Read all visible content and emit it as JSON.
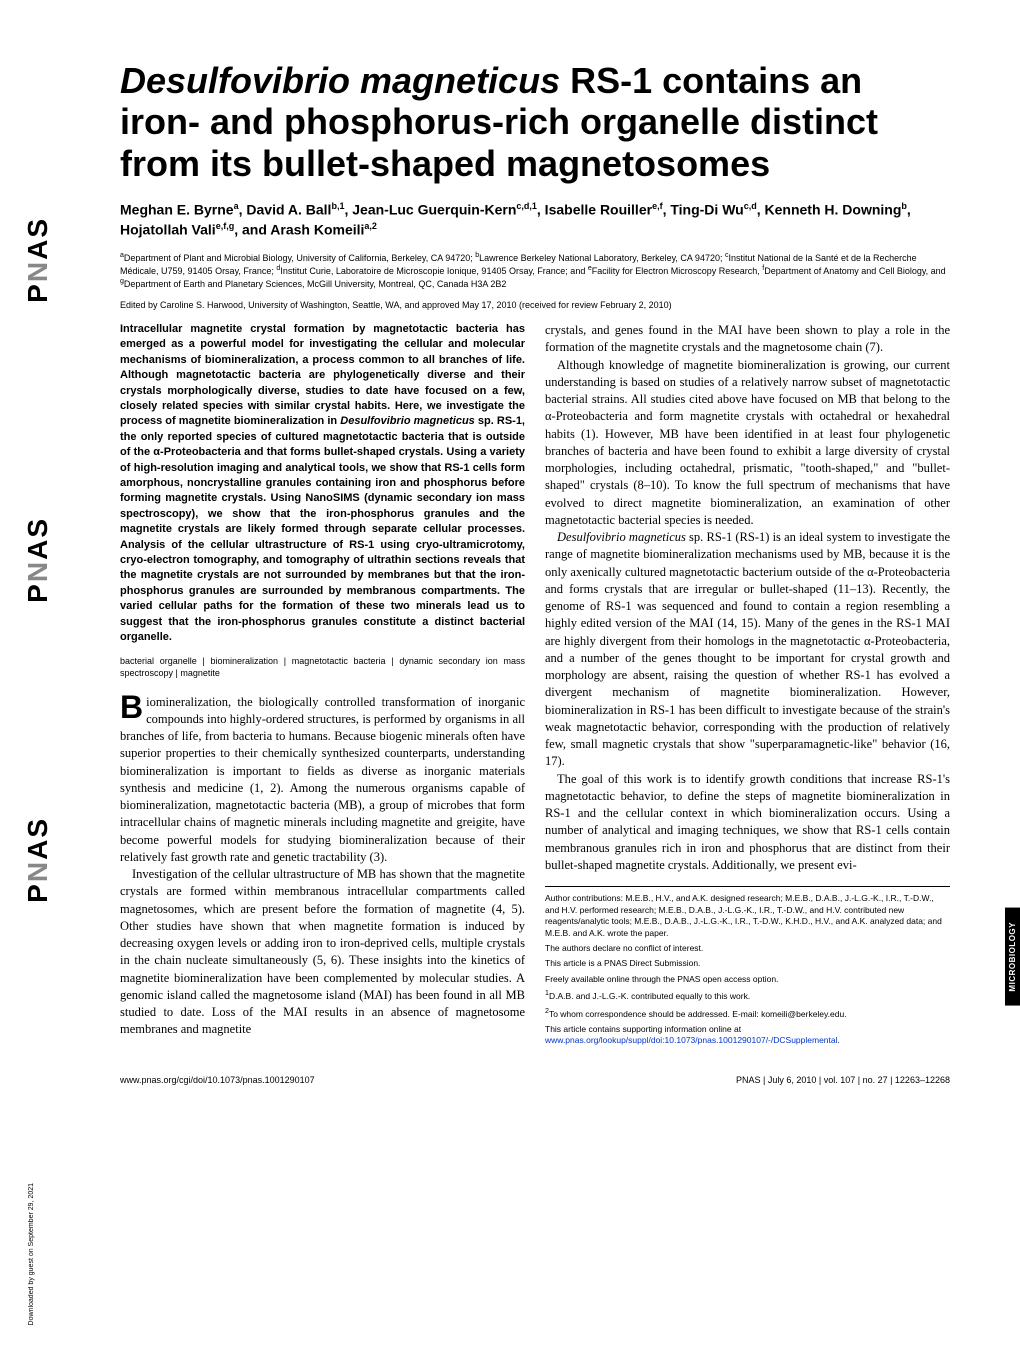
{
  "sidebar": {
    "logo_repeat": [
      "PNAS",
      "PNAS",
      "PNAS"
    ]
  },
  "title_plain_prefix": "Desulfovibrio magneticus",
  "title_rest": " RS-1 contains an iron- and phosphorus-rich organelle distinct from its bullet-shaped magnetosomes",
  "authors_html": "Meghan E. Byrne<sup>a</sup>, David A. Ball<sup>b,1</sup>, Jean-Luc Guerquin-Kern<sup>c,d,1</sup>, Isabelle Rouiller<sup>e,f</sup>, Ting-Di Wu<sup>c,d</sup>, Kenneth H. Downing<sup>b</sup>, Hojatollah Vali<sup>e,f,g</sup>, and Arash Komeili<sup>a,2</sup>",
  "affiliations_html": "<sup>a</sup>Department of Plant and Microbial Biology, University of California, Berkeley, CA 94720; <sup>b</sup>Lawrence Berkeley National Laboratory, Berkeley, CA 94720; <sup>c</sup>Institut National de la Santé et de la Recherche Médicale, U759, 91405 Orsay, France; <sup>d</sup>Institut Curie, Laboratoire de Microscopie Ionique, 91405 Orsay, France; and <sup>e</sup>Facility for Electron Microscopy Research, <sup>f</sup>Department of Anatomy and Cell Biology, and <sup>g</sup>Department of Earth and Planetary Sciences, McGill University, Montreal, QC, Canada H3A 2B2",
  "edited": "Edited by Caroline S. Harwood, University of Washington, Seattle, WA, and approved May 17, 2010 (received for review February 2, 2010)",
  "abstract": "Intracellular magnetite crystal formation by magnetotactic bacteria has emerged as a powerful model for investigating the cellular and molecular mechanisms of biomineralization, a process common to all branches of life. Although magnetotactic bacteria are phylogenetically diverse and their crystals morphologically diverse, studies to date have focused on a few, closely related species with similar crystal habits. Here, we investigate the process of magnetite biomineralization in Desulfovibrio magneticus sp. RS-1, the only reported species of cultured magnetotactic bacteria that is outside of the α-Proteobacteria and that forms bullet-shaped crystals. Using a variety of high-resolution imaging and analytical tools, we show that RS-1 cells form amorphous, noncrystalline granules containing iron and phosphorus before forming magnetite crystals. Using NanoSIMS (dynamic secondary ion mass spectroscopy), we show that the iron-phosphorus granules and the magnetite crystals are likely formed through separate cellular processes. Analysis of the cellular ultrastructure of RS-1 using cryo-ultramicrotomy, cryo-electron tomography, and tomography of ultrathin sections reveals that the magnetite crystals are not surrounded by membranes but that the iron-phosphorus granules are surrounded by membranous compartments. The varied cellular paths for the formation of these two minerals lead us to suggest that the iron-phosphorus granules constitute a distinct bacterial organelle.",
  "keywords": "bacterial organelle | biomineralization | magnetotactic bacteria | dynamic secondary ion mass spectroscopy | magnetite",
  "body_left": [
    "iomineralization, the biologically controlled transformation of inorganic compounds into highly-ordered structures, is performed by organisms in all branches of life, from bacteria to humans. Because biogenic minerals often have superior properties to their chemically synthesized counterparts, understanding biomineralization is important to fields as diverse as inorganic materials synthesis and medicine (1, 2). Among the numerous organisms capable of biomineralization, magnetotactic bacteria (MB), a group of microbes that form intracellular chains of magnetic minerals including magnetite and greigite, have become powerful models for studying biomineralization because of their relatively fast growth rate and genetic tractability (3).",
    "Investigation of the cellular ultrastructure of MB has shown that the magnetite crystals are formed within membranous intracellular compartments called magnetosomes, which are present before the formation of magnetite (4, 5). Other studies have shown that when magnetite formation is induced by decreasing oxygen levels or adding iron to iron-deprived cells, multiple crystals in the chain nucleate simultaneously (5, 6). These insights into the kinetics of magnetite biomineralization have been complemented by molecular studies. A genomic island called the magnetosome island (MAI) has been found in all MB studied to date. Loss of the MAI results in an absence of magnetosome membranes and magnetite"
  ],
  "body_right": [
    "crystals, and genes found in the MAI have been shown to play a role in the formation of the magnetite crystals and the magnetosome chain (7).",
    "Although knowledge of magnetite biomineralization is growing, our current understanding is based on studies of a relatively narrow subset of magnetotactic bacterial strains. All studies cited above have focused on MB that belong to the α-Proteobacteria and form magnetite crystals with octahedral or hexahedral habits (1). However, MB have been identified in at least four phylogenetic branches of bacteria and have been found to exhibit a large diversity of crystal morphologies, including octahedral, prismatic, \"tooth-shaped,\" and \"bullet-shaped\" crystals (8–10). To know the full spectrum of mechanisms that have evolved to direct magnetite biomineralization, an examination of other magnetotactic bacterial species is needed.",
    "Desulfovibrio magneticus sp. RS-1 (RS-1) is an ideal system to investigate the range of magnetite biomineralization mechanisms used by MB, because it is the only axenically cultured magnetotactic bacterium outside of the α-Proteobacteria and forms crystals that are irregular or bullet-shaped (11–13). Recently, the genome of RS-1 was sequenced and found to contain a region resembling a highly edited version of the MAI (14, 15). Many of the genes in the RS-1 MAI are highly divergent from their homologs in the magnetotactic α-Proteobacteria, and a number of the genes thought to be important for crystal growth and morphology are absent, raising the question of whether RS-1 has evolved a divergent mechanism of magnetite biomineralization. However, biomineralization in RS-1 has been difficult to investigate because of the strain's weak magnetotactic behavior, corresponding with the production of relatively few, small magnetic crystals that show \"superparamagnetic-like\" behavior (16, 17).",
    "The goal of this work is to identify growth conditions that increase RS-1's magnetotactic behavior, to define the steps of magnetite biomineralization in RS-1 and the cellular context in which biomineralization occurs. Using a number of analytical and imaging techniques, we show that RS-1 cells contain membranous granules rich in iron and phosphorus that are distinct from their bullet-shaped magnetite crystals. Additionally, we present evi-"
  ],
  "footnotes": {
    "contrib": "Author contributions: M.E.B., H.V., and A.K. designed research; M.E.B., D.A.B., J.-L.G.-K., I.R., T.-D.W., and H.V. performed research; M.E.B., D.A.B., J.-L.G.-K., I.R., T.-D.W., and H.V. contributed new reagents/analytic tools; M.E.B., D.A.B., J.-L.G.-K., I.R., T.-D.W., K.H.D., H.V., and A.K. analyzed data; and M.E.B. and A.K. wrote the paper.",
    "conflict": "The authors declare no conflict of interest.",
    "submission": "This article is a PNAS Direct Submission.",
    "openaccess": "Freely available online through the PNAS open access option.",
    "fn1": "D.A.B. and J.-L.G.-K. contributed equally to this work.",
    "fn2": "To whom correspondence should be addressed. E-mail: komeili@berkeley.edu.",
    "si_prefix": "This article contains supporting information online at ",
    "si_link": "www.pnas.org/lookup/suppl/doi:10.1073/pnas.1001290107/-/DCSupplemental",
    "si_suffix": "."
  },
  "footer": {
    "doi": "www.pnas.org/cgi/doi/10.1073/pnas.1001290107",
    "citation": "PNAS | July 6, 2010 | vol. 107 | no. 27 | 12263–12268"
  },
  "section_tab": "MICROBIOLOGY",
  "download_note": "Downloaded by guest on September 29, 2021",
  "colors": {
    "link": "#0033cc",
    "text": "#000000",
    "bg": "#ffffff"
  }
}
